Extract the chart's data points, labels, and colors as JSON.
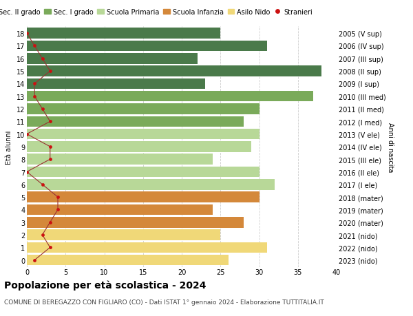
{
  "ages": [
    18,
    17,
    16,
    15,
    14,
    13,
    12,
    11,
    10,
    9,
    8,
    7,
    6,
    5,
    4,
    3,
    2,
    1,
    0
  ],
  "years": [
    "2005 (V sup)",
    "2006 (IV sup)",
    "2007 (III sup)",
    "2008 (II sup)",
    "2009 (I sup)",
    "2010 (III med)",
    "2011 (II med)",
    "2012 (I med)",
    "2013 (V ele)",
    "2014 (IV ele)",
    "2015 (III ele)",
    "2016 (II ele)",
    "2017 (I ele)",
    "2018 (mater)",
    "2019 (mater)",
    "2020 (mater)",
    "2021 (nido)",
    "2022 (nido)",
    "2023 (nido)"
  ],
  "values": [
    25,
    31,
    22,
    38,
    23,
    37,
    30,
    28,
    30,
    29,
    24,
    30,
    32,
    30,
    24,
    28,
    25,
    31,
    26
  ],
  "stranieri": [
    0,
    1,
    2,
    3,
    1,
    1,
    2,
    3,
    0,
    3,
    3,
    0,
    2,
    4,
    4,
    3,
    2,
    3,
    1
  ],
  "bar_colors": [
    "#4a7a4a",
    "#4a7a4a",
    "#4a7a4a",
    "#4a7a4a",
    "#4a7a4a",
    "#7aaa5a",
    "#7aaa5a",
    "#7aaa5a",
    "#b8d898",
    "#b8d898",
    "#b8d898",
    "#b8d898",
    "#b8d898",
    "#d4883a",
    "#d4883a",
    "#d4883a",
    "#f0d878",
    "#f0d878",
    "#f0d878"
  ],
  "legend_labels": [
    "Sec. II grado",
    "Sec. I grado",
    "Scuola Primaria",
    "Scuola Infanzia",
    "Asilo Nido",
    "Stranieri"
  ],
  "legend_colors": [
    "#4a7a4a",
    "#7aaa5a",
    "#b8d898",
    "#d4883a",
    "#f0d878",
    "#cc1111"
  ],
  "stranieri_color": "#cc1111",
  "stranieri_line_color": "#993333",
  "ylabel_left": "Età alunni",
  "ylabel_right": "Anni di nascita",
  "xlim": [
    0,
    40
  ],
  "title": "Popolazione per età scolastica - 2024",
  "subtitle": "COMUNE DI BEREGAZZO CON FIGLIARO (CO) - Dati ISTAT 1° gennaio 2024 - Elaborazione TUTTITALIA.IT",
  "bg_color": "#ffffff",
  "grid_color": "#cccccc",
  "bar_height": 0.85,
  "title_fontsize": 10,
  "subtitle_fontsize": 6.5,
  "axis_fontsize": 7,
  "tick_fontsize": 7,
  "legend_fontsize": 7
}
